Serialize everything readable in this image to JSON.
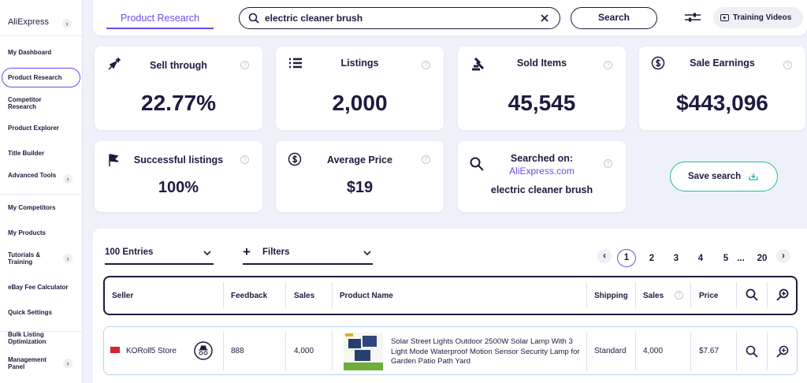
{
  "sidebar": {
    "brand": "AliExpress",
    "items": [
      "My Dashboard",
      "Product Research",
      "Competitor Research",
      "Product Explorer",
      "Title Builder",
      "Advanced Tools",
      "My Competitors",
      "My Products",
      "Tutorials & Training",
      "eBay Fee Calculator",
      "Quick Settings",
      "Bulk Listing Optimization",
      "Management Panel"
    ]
  },
  "topbar": {
    "tab": "Product Research",
    "query": "electric cleaner brush",
    "search_button": "Search",
    "training": "Training Videos"
  },
  "stats": [
    {
      "label": "Sell through",
      "value": "22.77%"
    },
    {
      "label": "Listings",
      "value": "2,000"
    },
    {
      "label": "Sold Items",
      "value": "45,545"
    },
    {
      "label": "Sale Earnings",
      "value": "$443,096"
    },
    {
      "label": "Successful listings",
      "value": "100%"
    },
    {
      "label": "Average Price",
      "value": "$19"
    }
  ],
  "searched_on": {
    "label": "Searched on:",
    "site": "AliExpress.com",
    "query": "electric cleaner brush"
  },
  "save_search": "Save search",
  "controls": {
    "entries": "100 Entries",
    "filters": "Filters",
    "pages": [
      "1",
      "2",
      "3",
      "4",
      "5",
      "...",
      "20"
    ]
  },
  "table": {
    "headers": [
      "Seller",
      "Feedback",
      "Sales",
      "Product Name",
      "Shipping",
      "Sales",
      "Price"
    ],
    "rows": [
      [
        "KORoll5 Store",
        "888",
        "4,000",
        "Solar Street Lights Outdoor 2500W Solar Lamp With 3 Light Mode Waterproof Motion Sensor Security Lamp for Garden Patio Path Yard",
        "Standard",
        "4,000",
        "$7.67"
      ]
    ]
  }
}
